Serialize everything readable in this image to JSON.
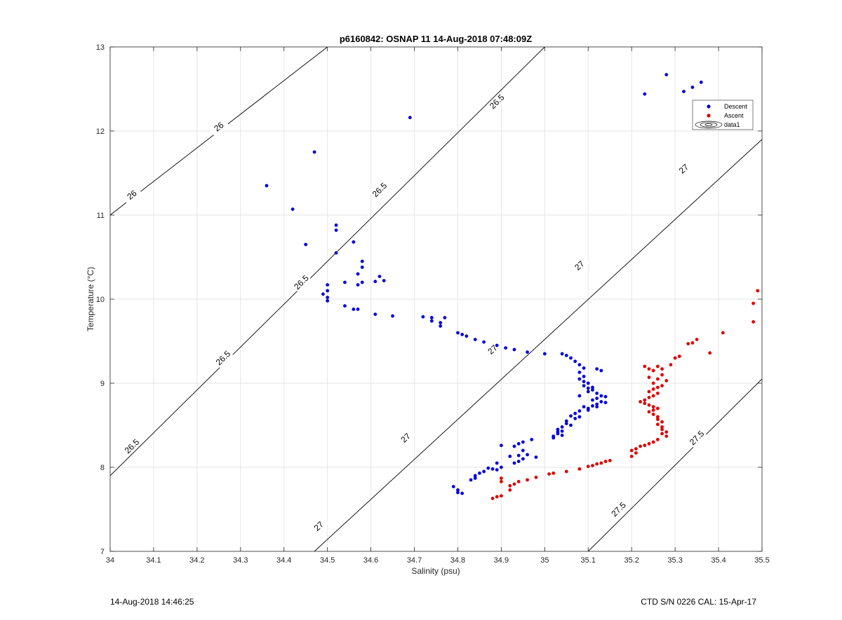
{
  "chart_data": {
    "type": "scatter",
    "title": "p6160842: OSNAP 11 14-Aug-2018 07:48:09Z",
    "xlabel": "Salinity (psu)",
    "ylabel": "Temperature (°C)",
    "xlim": [
      34,
      35.5
    ],
    "ylim": [
      7,
      13
    ],
    "xticks": [
      "34",
      "34.1",
      "34.2",
      "34.3",
      "34.4",
      "34.5",
      "34.6",
      "34.7",
      "34.8",
      "34.9",
      "35",
      "35.1",
      "35.2",
      "35.3",
      "35.4",
      "35.5"
    ],
    "yticks": [
      "7",
      "8",
      "9",
      "10",
      "11",
      "12",
      "13"
    ],
    "grid": true,
    "legend_position": "top-right",
    "legend": [
      "Descent",
      "Ascent",
      "data1"
    ],
    "colors": {
      "descent": "#0000e0",
      "ascent": "#e00000",
      "contour": "#000000",
      "grid": "#e6e6e6"
    },
    "contours": [
      {
        "level": "26",
        "points": [
          [
            34.0,
            11.0
          ],
          [
            34.5,
            13.0
          ]
        ],
        "labels": [
          [
            34.05,
            11.24
          ],
          [
            34.25,
            12.05
          ]
        ]
      },
      {
        "level": "26.5",
        "points": [
          [
            34.0,
            7.9
          ],
          [
            35.0,
            13.0
          ]
        ],
        "labels": [
          [
            34.05,
            8.25
          ],
          [
            34.26,
            9.3
          ],
          [
            34.44,
            10.2
          ],
          [
            34.62,
            11.3
          ],
          [
            34.89,
            12.35
          ]
        ]
      },
      {
        "level": "27",
        "points": [
          [
            34.47,
            7.0
          ],
          [
            35.5,
            11.9
          ]
        ],
        "labels": [
          [
            34.48,
            7.3
          ],
          [
            34.68,
            8.35
          ],
          [
            34.88,
            9.4
          ],
          [
            35.08,
            10.4
          ],
          [
            35.32,
            11.55
          ]
        ]
      },
      {
        "level": "27.5",
        "points": [
          [
            35.1,
            7.0
          ],
          [
            35.5,
            9.05
          ]
        ],
        "labels": [
          [
            35.17,
            7.5
          ],
          [
            35.35,
            8.35
          ]
        ]
      }
    ],
    "series": [
      {
        "name": "Descent",
        "color": "#0000e0",
        "points": [
          [
            35.28,
            12.67
          ],
          [
            35.36,
            12.58
          ],
          [
            35.34,
            12.52
          ],
          [
            35.32,
            12.47
          ],
          [
            35.23,
            12.44
          ],
          [
            34.69,
            12.16
          ],
          [
            34.47,
            11.75
          ],
          [
            34.36,
            11.35
          ],
          [
            34.42,
            11.07
          ],
          [
            34.52,
            10.88
          ],
          [
            34.52,
            10.82
          ],
          [
            34.45,
            10.65
          ],
          [
            34.56,
            10.68
          ],
          [
            34.52,
            10.55
          ],
          [
            34.58,
            10.45
          ],
          [
            34.58,
            10.38
          ],
          [
            34.57,
            10.3
          ],
          [
            34.62,
            10.27
          ],
          [
            34.63,
            10.22
          ],
          [
            34.61,
            10.21
          ],
          [
            34.54,
            10.2
          ],
          [
            34.58,
            10.2
          ],
          [
            34.57,
            10.17
          ],
          [
            34.5,
            10.17
          ],
          [
            34.5,
            10.1
          ],
          [
            34.49,
            10.06
          ],
          [
            34.5,
            10.02
          ],
          [
            34.5,
            9.98
          ],
          [
            34.54,
            9.92
          ],
          [
            34.56,
            9.88
          ],
          [
            34.57,
            9.88
          ],
          [
            34.61,
            9.82
          ],
          [
            34.65,
            9.8
          ],
          [
            34.72,
            9.79
          ],
          [
            34.74,
            9.78
          ],
          [
            34.77,
            9.78
          ],
          [
            34.74,
            9.74
          ],
          [
            34.76,
            9.72
          ],
          [
            34.76,
            9.68
          ],
          [
            34.8,
            9.6
          ],
          [
            34.81,
            9.58
          ],
          [
            34.82,
            9.56
          ],
          [
            34.84,
            9.52
          ],
          [
            34.86,
            9.49
          ],
          [
            34.89,
            9.45
          ],
          [
            34.91,
            9.42
          ],
          [
            34.93,
            9.4
          ],
          [
            34.96,
            9.37
          ],
          [
            35.0,
            9.35
          ],
          [
            35.04,
            9.35
          ],
          [
            35.05,
            9.33
          ],
          [
            35.06,
            9.3
          ],
          [
            35.07,
            9.26
          ],
          [
            35.08,
            9.22
          ],
          [
            35.09,
            9.18
          ],
          [
            35.12,
            9.17
          ],
          [
            35.13,
            9.15
          ],
          [
            35.08,
            9.13
          ],
          [
            35.09,
            9.08
          ],
          [
            35.08,
            9.05
          ],
          [
            35.09,
            9.02
          ],
          [
            35.1,
            9.0
          ],
          [
            35.09,
            8.97
          ],
          [
            35.1,
            8.94
          ],
          [
            35.11,
            8.92
          ],
          [
            35.1,
            8.9
          ],
          [
            35.12,
            8.88
          ],
          [
            35.13,
            8.85
          ],
          [
            35.14,
            8.84
          ],
          [
            35.12,
            8.82
          ],
          [
            35.11,
            8.8
          ],
          [
            35.13,
            8.78
          ],
          [
            35.14,
            8.77
          ],
          [
            35.12,
            8.75
          ],
          [
            35.11,
            8.73
          ],
          [
            35.09,
            8.72
          ],
          [
            35.1,
            8.7
          ],
          [
            35.08,
            8.67
          ],
          [
            35.07,
            8.64
          ],
          [
            35.06,
            8.61
          ],
          [
            35.07,
            8.58
          ],
          [
            35.05,
            8.55
          ],
          [
            35.05,
            8.52
          ],
          [
            35.04,
            8.48
          ],
          [
            35.03,
            8.45
          ],
          [
            35.04,
            8.43
          ],
          [
            35.03,
            8.4
          ],
          [
            35.02,
            8.37
          ],
          [
            35.02,
            8.35
          ],
          [
            35.04,
            8.38
          ],
          [
            35.03,
            8.42
          ],
          [
            35.06,
            8.5
          ],
          [
            35.08,
            8.6
          ],
          [
            35.1,
            8.68
          ],
          [
            35.12,
            8.72
          ],
          [
            35.08,
            8.85
          ],
          [
            35.11,
            8.95
          ],
          [
            34.97,
            8.33
          ],
          [
            34.95,
            8.3
          ],
          [
            34.94,
            8.28
          ],
          [
            34.9,
            8.26
          ],
          [
            34.93,
            8.25
          ],
          [
            34.95,
            8.2
          ],
          [
            34.96,
            8.15
          ],
          [
            34.94,
            8.14
          ],
          [
            34.92,
            8.13
          ],
          [
            34.98,
            8.12
          ],
          [
            34.95,
            8.1
          ],
          [
            34.94,
            8.07
          ],
          [
            34.93,
            8.05
          ],
          [
            34.89,
            8.05
          ],
          [
            34.9,
            8.0
          ],
          [
            34.87,
            7.99
          ],
          [
            34.88,
            7.98
          ],
          [
            34.89,
            7.97
          ],
          [
            34.86,
            7.95
          ],
          [
            34.85,
            7.93
          ],
          [
            34.84,
            7.9
          ],
          [
            34.84,
            7.87
          ],
          [
            34.83,
            7.85
          ],
          [
            34.79,
            7.77
          ],
          [
            34.8,
            7.73
          ],
          [
            34.8,
            7.7
          ],
          [
            34.81,
            7.69
          ]
        ]
      },
      {
        "name": "Ascent",
        "color": "#e00000",
        "points": [
          [
            35.49,
            10.1
          ],
          [
            35.48,
            9.95
          ],
          [
            35.48,
            9.73
          ],
          [
            35.41,
            9.6
          ],
          [
            35.35,
            9.52
          ],
          [
            35.34,
            9.48
          ],
          [
            35.33,
            9.47
          ],
          [
            35.38,
            9.36
          ],
          [
            35.31,
            9.32
          ],
          [
            35.3,
            9.3
          ],
          [
            35.29,
            9.22
          ],
          [
            35.26,
            9.2
          ],
          [
            35.23,
            9.2
          ],
          [
            35.24,
            9.17
          ],
          [
            35.27,
            9.17
          ],
          [
            35.25,
            9.15
          ],
          [
            35.27,
            9.1
          ],
          [
            35.24,
            9.07
          ],
          [
            35.26,
            9.05
          ],
          [
            35.28,
            9.03
          ],
          [
            35.25,
            9.0
          ],
          [
            35.27,
            8.97
          ],
          [
            35.26,
            8.95
          ],
          [
            35.25,
            8.93
          ],
          [
            35.24,
            8.9
          ],
          [
            35.26,
            8.88
          ],
          [
            35.25,
            8.85
          ],
          [
            35.24,
            8.83
          ],
          [
            35.23,
            8.8
          ],
          [
            35.22,
            8.78
          ],
          [
            35.23,
            8.76
          ],
          [
            35.24,
            8.74
          ],
          [
            35.25,
            8.72
          ],
          [
            35.26,
            8.7
          ],
          [
            35.25,
            8.68
          ],
          [
            35.24,
            8.66
          ],
          [
            35.25,
            8.63
          ],
          [
            35.26,
            8.6
          ],
          [
            35.26,
            8.57
          ],
          [
            35.27,
            8.54
          ],
          [
            35.26,
            8.51
          ],
          [
            35.27,
            8.48
          ],
          [
            35.27,
            8.45
          ],
          [
            35.28,
            8.42
          ],
          [
            35.27,
            8.4
          ],
          [
            35.28,
            8.37
          ],
          [
            35.26,
            8.33
          ],
          [
            35.25,
            8.3
          ],
          [
            35.24,
            8.28
          ],
          [
            35.23,
            8.26
          ],
          [
            35.22,
            8.25
          ],
          [
            35.21,
            8.22
          ],
          [
            35.2,
            8.2
          ],
          [
            35.21,
            8.17
          ],
          [
            35.2,
            8.13
          ],
          [
            35.15,
            8.08
          ],
          [
            35.14,
            8.07
          ],
          [
            35.13,
            8.05
          ],
          [
            35.12,
            8.04
          ],
          [
            35.11,
            8.02
          ],
          [
            35.1,
            8.01
          ],
          [
            35.08,
            7.98
          ],
          [
            35.05,
            7.95
          ],
          [
            35.02,
            7.93
          ],
          [
            35.01,
            7.92
          ],
          [
            34.98,
            7.88
          ],
          [
            34.96,
            7.85
          ],
          [
            34.94,
            7.83
          ],
          [
            34.93,
            7.8
          ],
          [
            34.92,
            7.78
          ],
          [
            34.9,
            7.83
          ],
          [
            34.9,
            7.87
          ],
          [
            34.89,
            7.65
          ],
          [
            34.88,
            7.63
          ],
          [
            34.9,
            7.66
          ],
          [
            34.92,
            7.73
          ]
        ]
      }
    ]
  },
  "footer": {
    "left": "14-Aug-2018 14:46:25",
    "right": "CTD S/N 0226  CAL: 15-Apr-17"
  }
}
